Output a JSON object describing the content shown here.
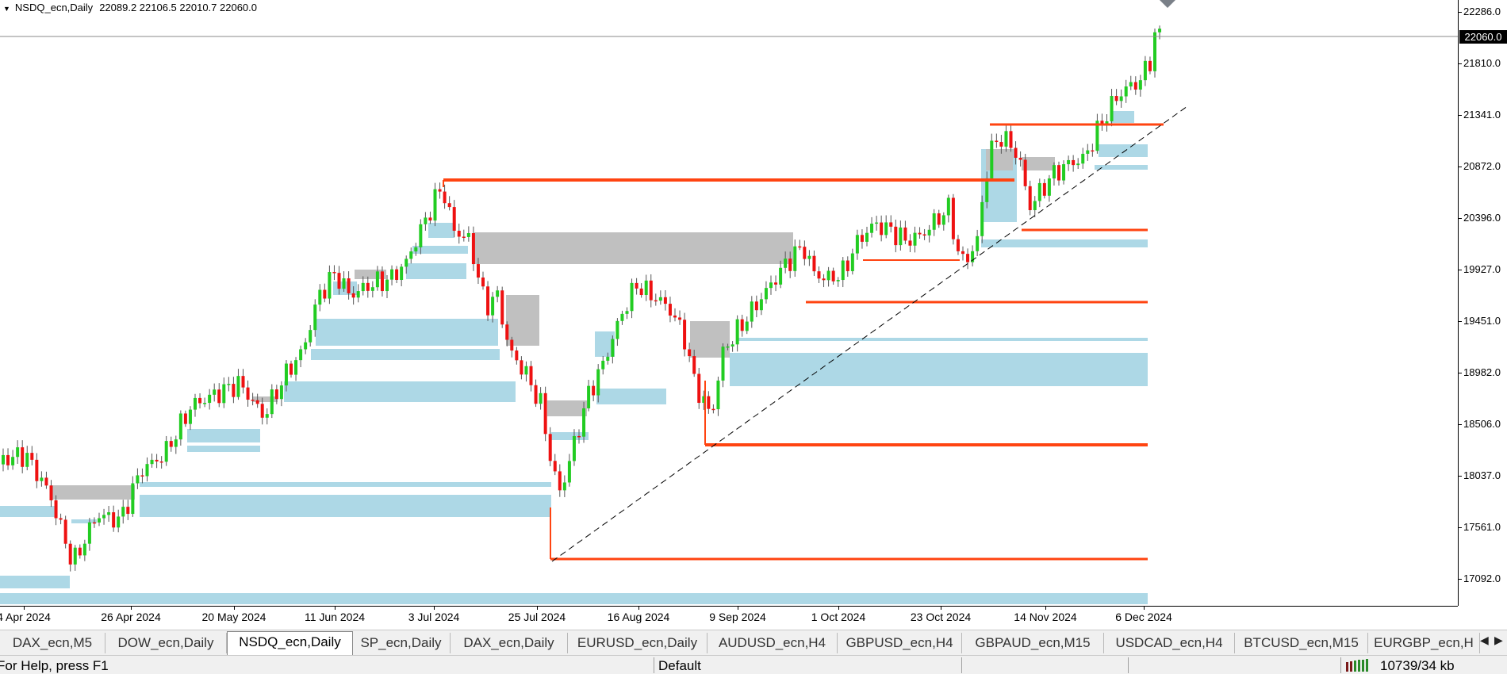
{
  "chart": {
    "symbol": "NSDQ_ecn,Daily",
    "ohlc": "22089.2 22106.5 22010.7 22060.0",
    "current_price": "22060.0"
  },
  "price_axis": [
    "22286.0",
    "21810.0",
    "21341.0",
    "20872.0",
    "20396.0",
    "19927.0",
    "19451.0",
    "18982.0",
    "18506.0",
    "18037.0",
    "17561.0",
    "17092.0"
  ],
  "time_axis": [
    "4 Apr 2024",
    "26 Apr 2024",
    "20 May 2024",
    "11 Jun 2024",
    "3 Jul 2024",
    "25 Jul 2024",
    "16 Aug 2024",
    "9 Sep 2024",
    "1 Oct 2024",
    "23 Oct 2024",
    "14 Nov 2024",
    "6 Dec 2024"
  ],
  "tabs": [
    {
      "label": "DAX_ecn,M5",
      "active": false
    },
    {
      "label": "DOW_ecn,Daily",
      "active": false
    },
    {
      "label": "NSDQ_ecn,Daily",
      "active": true
    },
    {
      "label": "SP_ecn,Daily",
      "active": false
    },
    {
      "label": "DAX_ecn,Daily",
      "active": false
    },
    {
      "label": "EURUSD_ecn,Daily",
      "active": false
    },
    {
      "label": "AUDUSD_ecn,H4",
      "active": false
    },
    {
      "label": "GBPUSD_ecn,H4",
      "active": false
    },
    {
      "label": "GBPAUD_ecn,M15",
      "active": false
    },
    {
      "label": "USDCAD_ecn,H4",
      "active": false
    },
    {
      "label": "BTCUSD_ecn,M15",
      "active": false
    },
    {
      "label": "EURGBP_ecn,H",
      "active": false
    }
  ],
  "status": {
    "help": "For Help, press F1",
    "profile": "Default",
    "traffic": "10739/34 kb"
  },
  "colors": {
    "bull": "#22cc22",
    "bear": "#ee1111",
    "resistance": "#ff4411",
    "demand_zone": "#add8e6",
    "gray_zone": "#c0c0c0"
  }
}
